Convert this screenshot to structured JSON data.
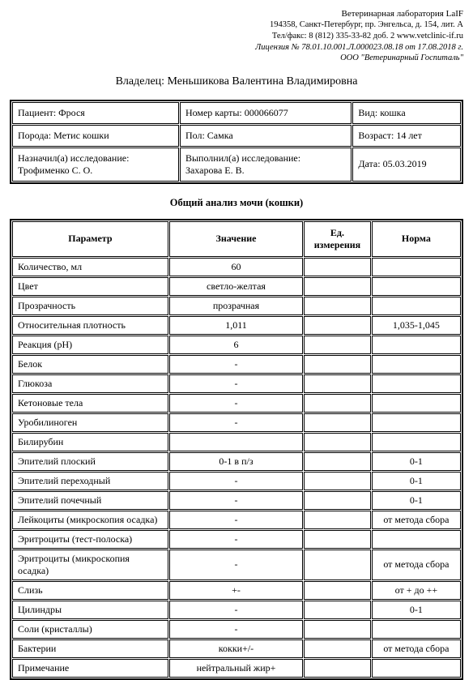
{
  "header": {
    "lab_name": "Ветеринарная лаборатория LaIF",
    "address": "194358, Санкт-Петербург, пр. Энгельса, д. 154, лит. А",
    "phone": "Тел/факс: 8 (812) 335-33-82 доб. 2  www.vetclinic-if.ru",
    "license": "Лицензия № 78.01.10.001.Л.000023.08.18 от 17.08.2018 г.",
    "org": "ООО \"Ветеринарный Госпиталь\""
  },
  "owner_label": "Владелец: ",
  "owner_name": "Меньшикова Валентина Владимировна",
  "info": {
    "patient_label": "Пациент:",
    "patient": "Фрося",
    "card_label": "Номер карты:",
    "card": "000066077",
    "kind_label": "Вид:",
    "kind": "кошка",
    "breed_label": "Порода:",
    "breed": "Метис кошки",
    "sex_label": "Пол:",
    "sex": "Самка",
    "age_label": "Возраст:",
    "age": "14 лет",
    "assigned_label": "Назначил(а) исследование:",
    "assigned": "Трофименко С. О.",
    "performed_label": "Выполнил(а) исследование:",
    "performed": "Захарова Е. В.",
    "date_label": "Дата:",
    "date": "05.03.2019"
  },
  "section_title": "Общий анализ мочи (кошки)",
  "cols": {
    "param": "Параметр",
    "value": "Значение",
    "unit": "Ед. измерения",
    "norm": "Норма"
  },
  "rows": [
    {
      "p": "Количество, мл",
      "v": "60",
      "u": "",
      "n": ""
    },
    {
      "p": "Цвет",
      "v": "светло-желтая",
      "u": "",
      "n": ""
    },
    {
      "p": "Прозрачность",
      "v": "прозрачная",
      "u": "",
      "n": ""
    },
    {
      "p": "Относительная плотность",
      "v": "1,011",
      "u": "",
      "n": "1,035-1,045"
    },
    {
      "p": "Реакция (pH)",
      "v": "6",
      "u": "",
      "n": ""
    },
    {
      "p": "Белок",
      "v": "-",
      "u": "",
      "n": ""
    },
    {
      "p": "Глюкоза",
      "v": "-",
      "u": "",
      "n": ""
    },
    {
      "p": "Кетоновые тела",
      "v": "-",
      "u": "",
      "n": ""
    },
    {
      "p": "Уробилиноген",
      "v": "-",
      "u": "",
      "n": ""
    },
    {
      "p": "Билирубин",
      "v": "",
      "u": "",
      "n": ""
    },
    {
      "p": "Эпителий плоский",
      "v": "0-1 в п/з",
      "u": "",
      "n": "0-1"
    },
    {
      "p": "Эпителий переходный",
      "v": "-",
      "u": "",
      "n": "0-1"
    },
    {
      "p": "Эпителий почечный",
      "v": "-",
      "u": "",
      "n": "0-1"
    },
    {
      "p": "Лейкоциты (микроскопия осадка)",
      "v": "-",
      "u": "",
      "n": "от метода сбора"
    },
    {
      "p": "Эритроциты (тест-полоска)",
      "v": "-",
      "u": "",
      "n": ""
    },
    {
      "p": "Эритроциты (микроскопия осадка)",
      "v": "-",
      "u": "",
      "n": "от метода сбора"
    },
    {
      "p": "Слизь",
      "v": "+-",
      "u": "",
      "n": "от + до ++"
    },
    {
      "p": "Цилиндры",
      "v": "-",
      "u": "",
      "n": "0-1"
    },
    {
      "p": "Соли (кристаллы)",
      "v": "-",
      "u": "",
      "n": ""
    },
    {
      "p": "Бактерии",
      "v": "кокки+/-",
      "u": "",
      "n": "от метода сбора"
    },
    {
      "p": "Примечание",
      "v": "нейтральный жир+",
      "u": "",
      "n": ""
    }
  ]
}
